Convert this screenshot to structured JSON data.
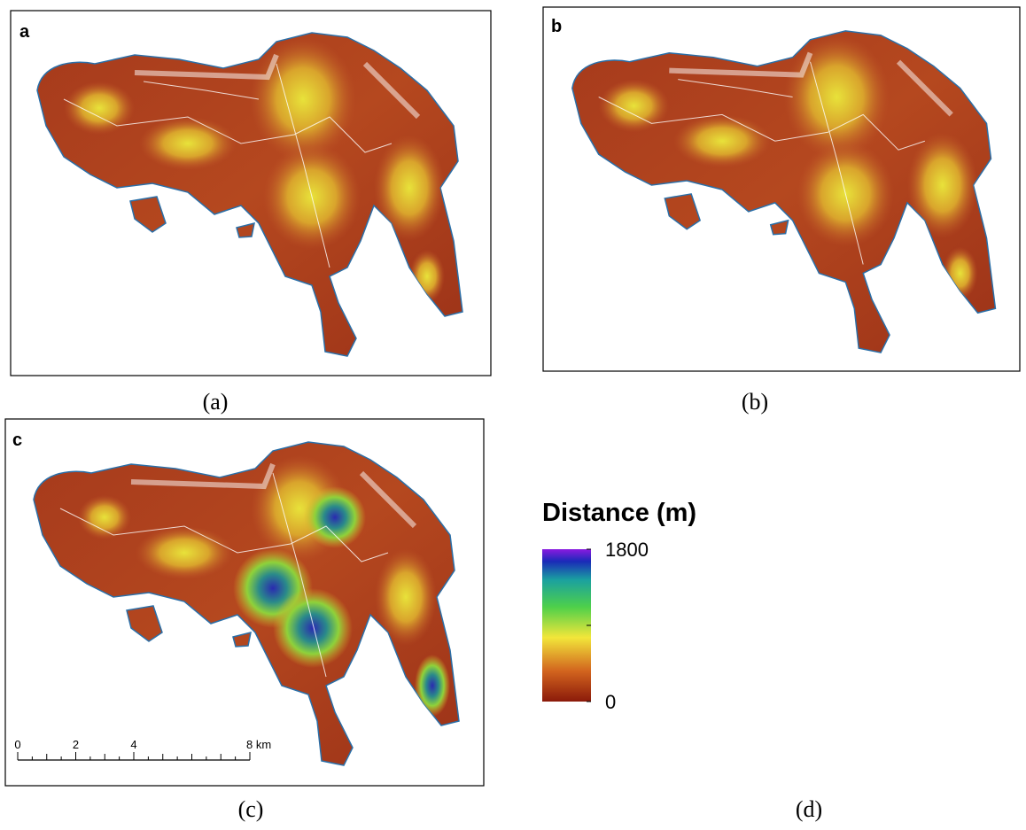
{
  "panels": [
    {
      "letter": "a",
      "caption": "(a)"
    },
    {
      "letter": "b",
      "caption": "(b)"
    },
    {
      "letter": "c",
      "caption": "(c)"
    }
  ],
  "legend": {
    "caption": "(d)",
    "title": "Distance (m)",
    "max": 1800,
    "min": 0
  },
  "scale_bar": {
    "ticks": [
      0,
      2,
      4,
      {
        "value": 8,
        "label": "8 km"
      }
    ]
  }
}
